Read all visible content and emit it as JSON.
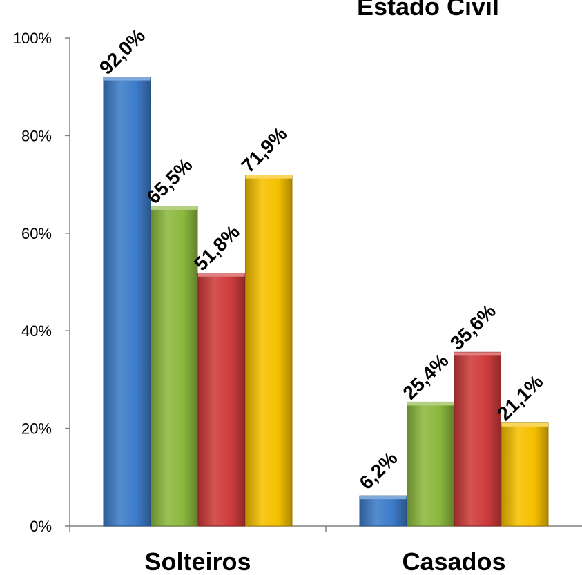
{
  "chart_data": {
    "type": "bar",
    "title": "Estado Civil",
    "xlabel": "",
    "ylabel": "",
    "categories": [
      "Solteiros",
      "Casados"
    ],
    "series": [
      {
        "values": [
          92.0,
          6.2
        ],
        "labels": [
          "92,0%",
          "6,2%"
        ],
        "color": "#3d7cc9"
      },
      {
        "values": [
          65.5,
          25.4
        ],
        "labels": [
          "65,5%",
          "25,4%"
        ],
        "color": "#8cb83e"
      },
      {
        "values": [
          51.8,
          35.6
        ],
        "labels": [
          "51,8%",
          "35,6%"
        ],
        "color": "#cf3b3b"
      },
      {
        "values": [
          71.9,
          21.1
        ],
        "labels": [
          "71,9%",
          "21,1%"
        ],
        "color": "#f6c000"
      }
    ],
    "ylim": [
      0,
      100
    ],
    "yticks": [
      0,
      20,
      40,
      60,
      80,
      100
    ],
    "ytick_labels": [
      "0%",
      "20%",
      "40%",
      "60%",
      "80%",
      "100%"
    ],
    "grid": false,
    "legend": "none"
  }
}
